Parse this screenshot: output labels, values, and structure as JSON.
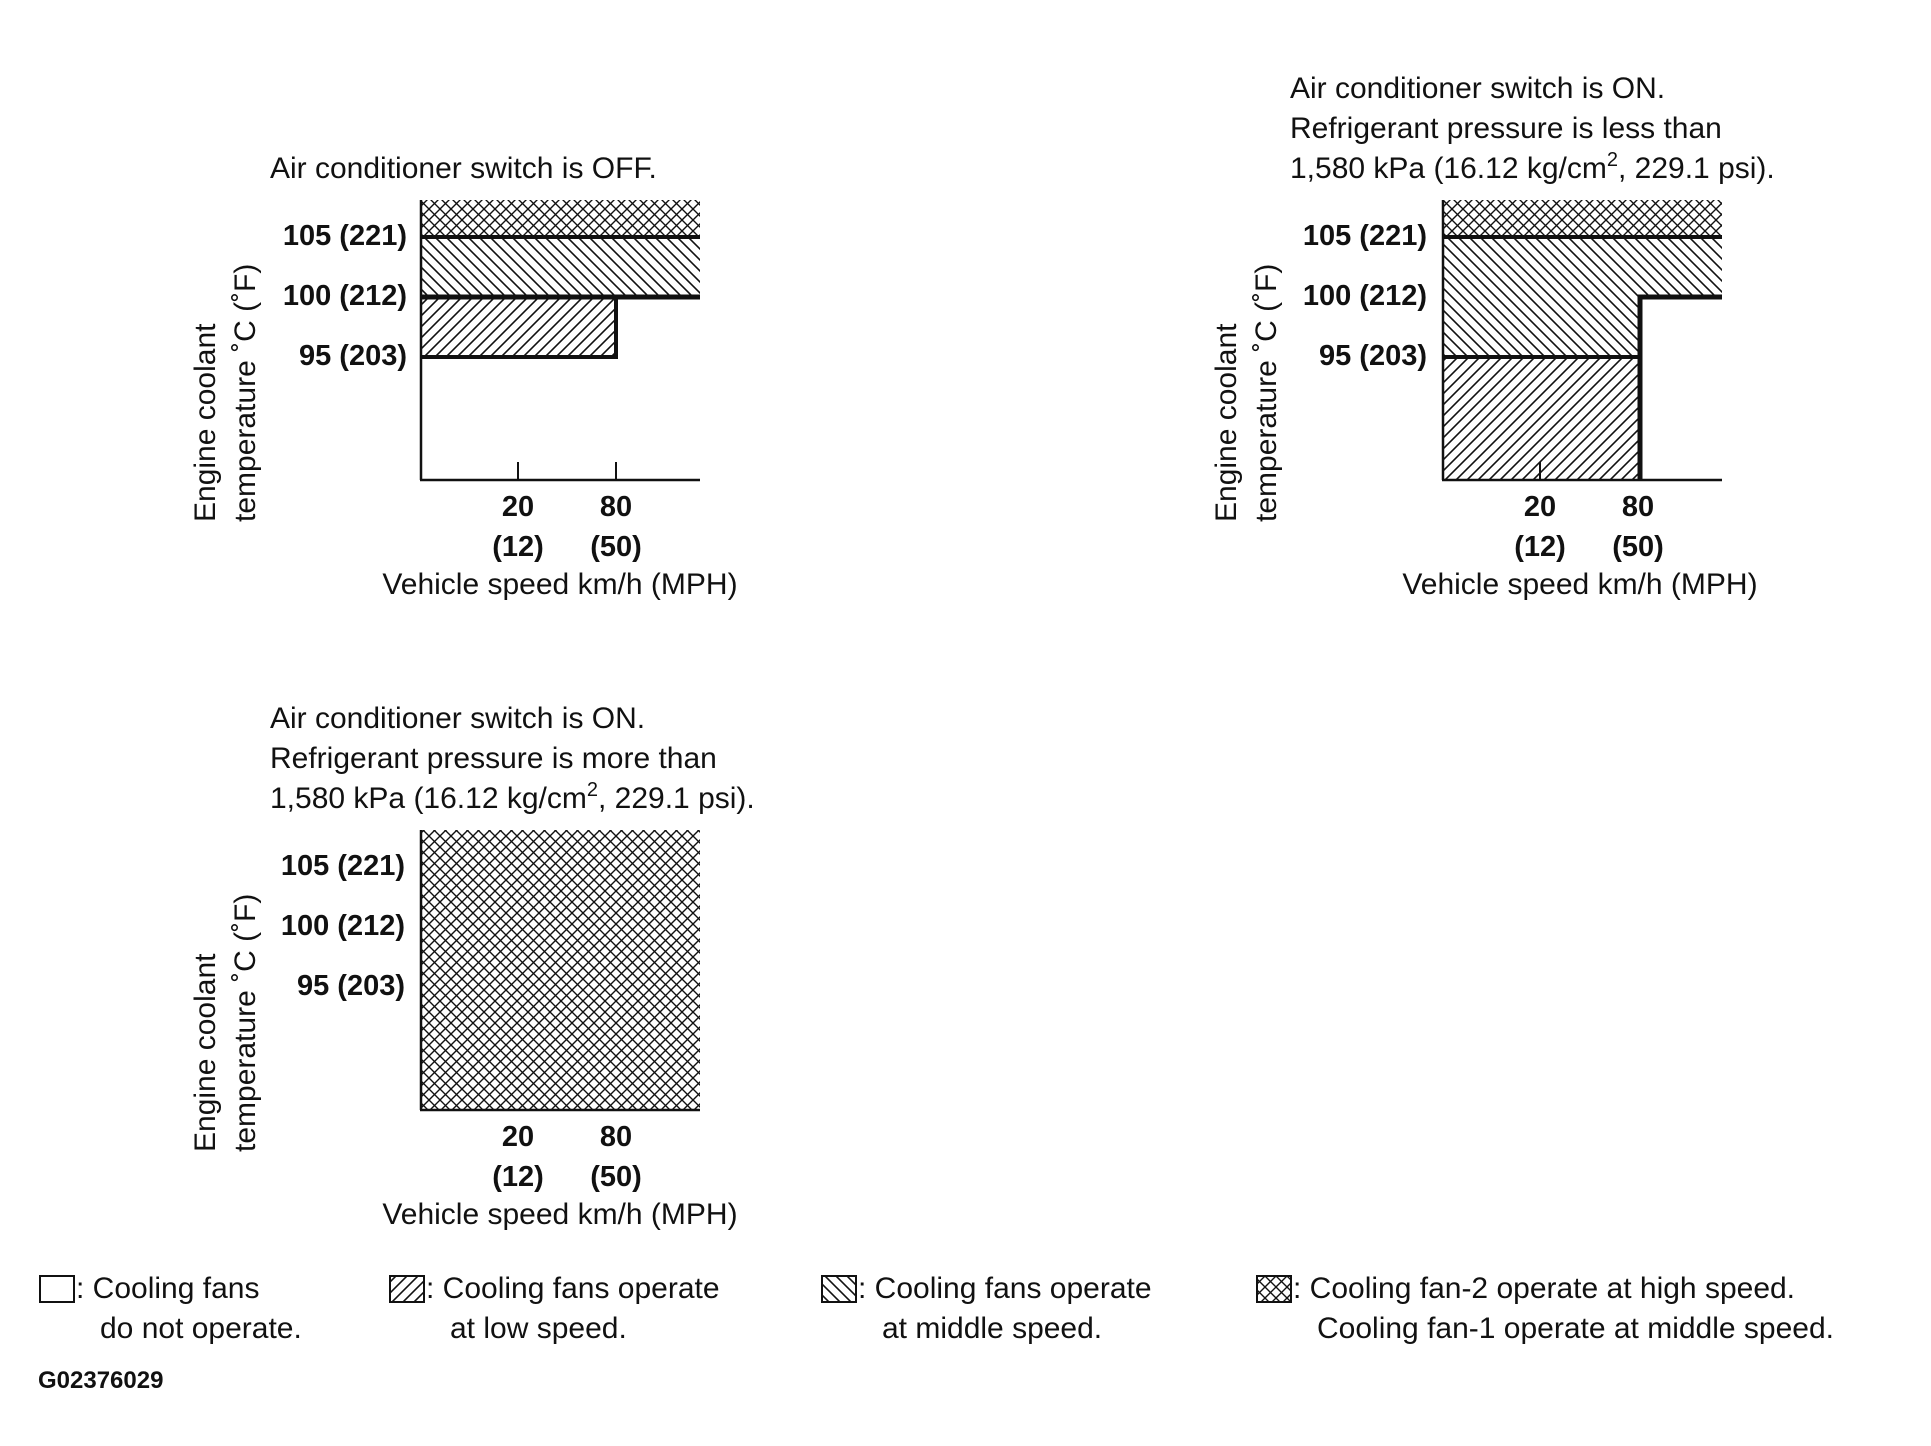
{
  "figure_id": "G02376029",
  "colors": {
    "ink": "#111111",
    "background": "#ffffff"
  },
  "charts": [
    {
      "title_lines": [
        "Air conditioner switch is OFF."
      ],
      "regions": [
        {
          "pattern": "lowspeed",
          "temp_from": 95,
          "temp_to": 100,
          "speed_from": 0,
          "speed_to": 80
        },
        {
          "pattern": "midspeed",
          "temp_from": 100,
          "temp_to": 105,
          "speed_from": 0,
          "speed_to": "max"
        },
        {
          "pattern": "highspeed",
          "temp_from": 105,
          "temp_to": "max",
          "speed_from": 0,
          "speed_to": "max"
        }
      ]
    },
    {
      "title_lines": [
        "Air conditioner switch is ON.",
        "Refrigerant pressure is less than",
        "1,580 kPa (16.12 kg/cm",
        "2",
        ", 229.1 psi)."
      ],
      "regions": [
        {
          "pattern": "lowspeed",
          "temp_from": "min",
          "temp_to": 95,
          "speed_from": 0,
          "speed_to": 80
        },
        {
          "pattern": "midspeed",
          "temp_from": 95,
          "temp_to": 105,
          "speed_from": 0,
          "speed_to": 80
        },
        {
          "pattern": "midspeed",
          "temp_from": 100,
          "temp_to": 105,
          "speed_from": 80,
          "speed_to": "max"
        },
        {
          "pattern": "highspeed",
          "temp_from": 105,
          "temp_to": "max",
          "speed_from": 0,
          "speed_to": "max"
        }
      ]
    },
    {
      "title_lines": [
        "Air conditioner switch is ON.",
        "Refrigerant pressure is more than",
        "1,580 kPa (16.12 kg/cm",
        "2",
        ", 229.1 psi)."
      ],
      "regions": [
        {
          "pattern": "highspeed",
          "temp_from": "min",
          "temp_to": "max",
          "speed_from": 0,
          "speed_to": "max"
        }
      ]
    }
  ],
  "axes": {
    "y_label_line1": "Engine coolant",
    "y_label_line2": "temperature ˚C (˚F)",
    "y_ticks": [
      {
        "value": 105,
        "label": "105 (221)"
      },
      {
        "value": 100,
        "label": "100 (212)"
      },
      {
        "value": 95,
        "label": "95 (203)"
      }
    ],
    "x_ticks": [
      {
        "value": 20,
        "label": "20",
        "sublabel": "(12)"
      },
      {
        "value": 80,
        "label": "80",
        "sublabel": "(50)"
      }
    ],
    "x_label": "Vehicle speed km/h (MPH)"
  },
  "legend": [
    {
      "pattern": "none",
      "line1": ": Cooling fans",
      "line2": "do not operate."
    },
    {
      "pattern": "lowspeed",
      "line1": ": Cooling fans operate",
      "line2": "at low speed."
    },
    {
      "pattern": "midspeed",
      "line1": ": Cooling fans operate",
      "line2": "at middle speed."
    },
    {
      "pattern": "highspeed",
      "line1": ": Cooling fan-2 operate at high speed.",
      "line2": "Cooling fan-1 operate at middle speed."
    }
  ]
}
